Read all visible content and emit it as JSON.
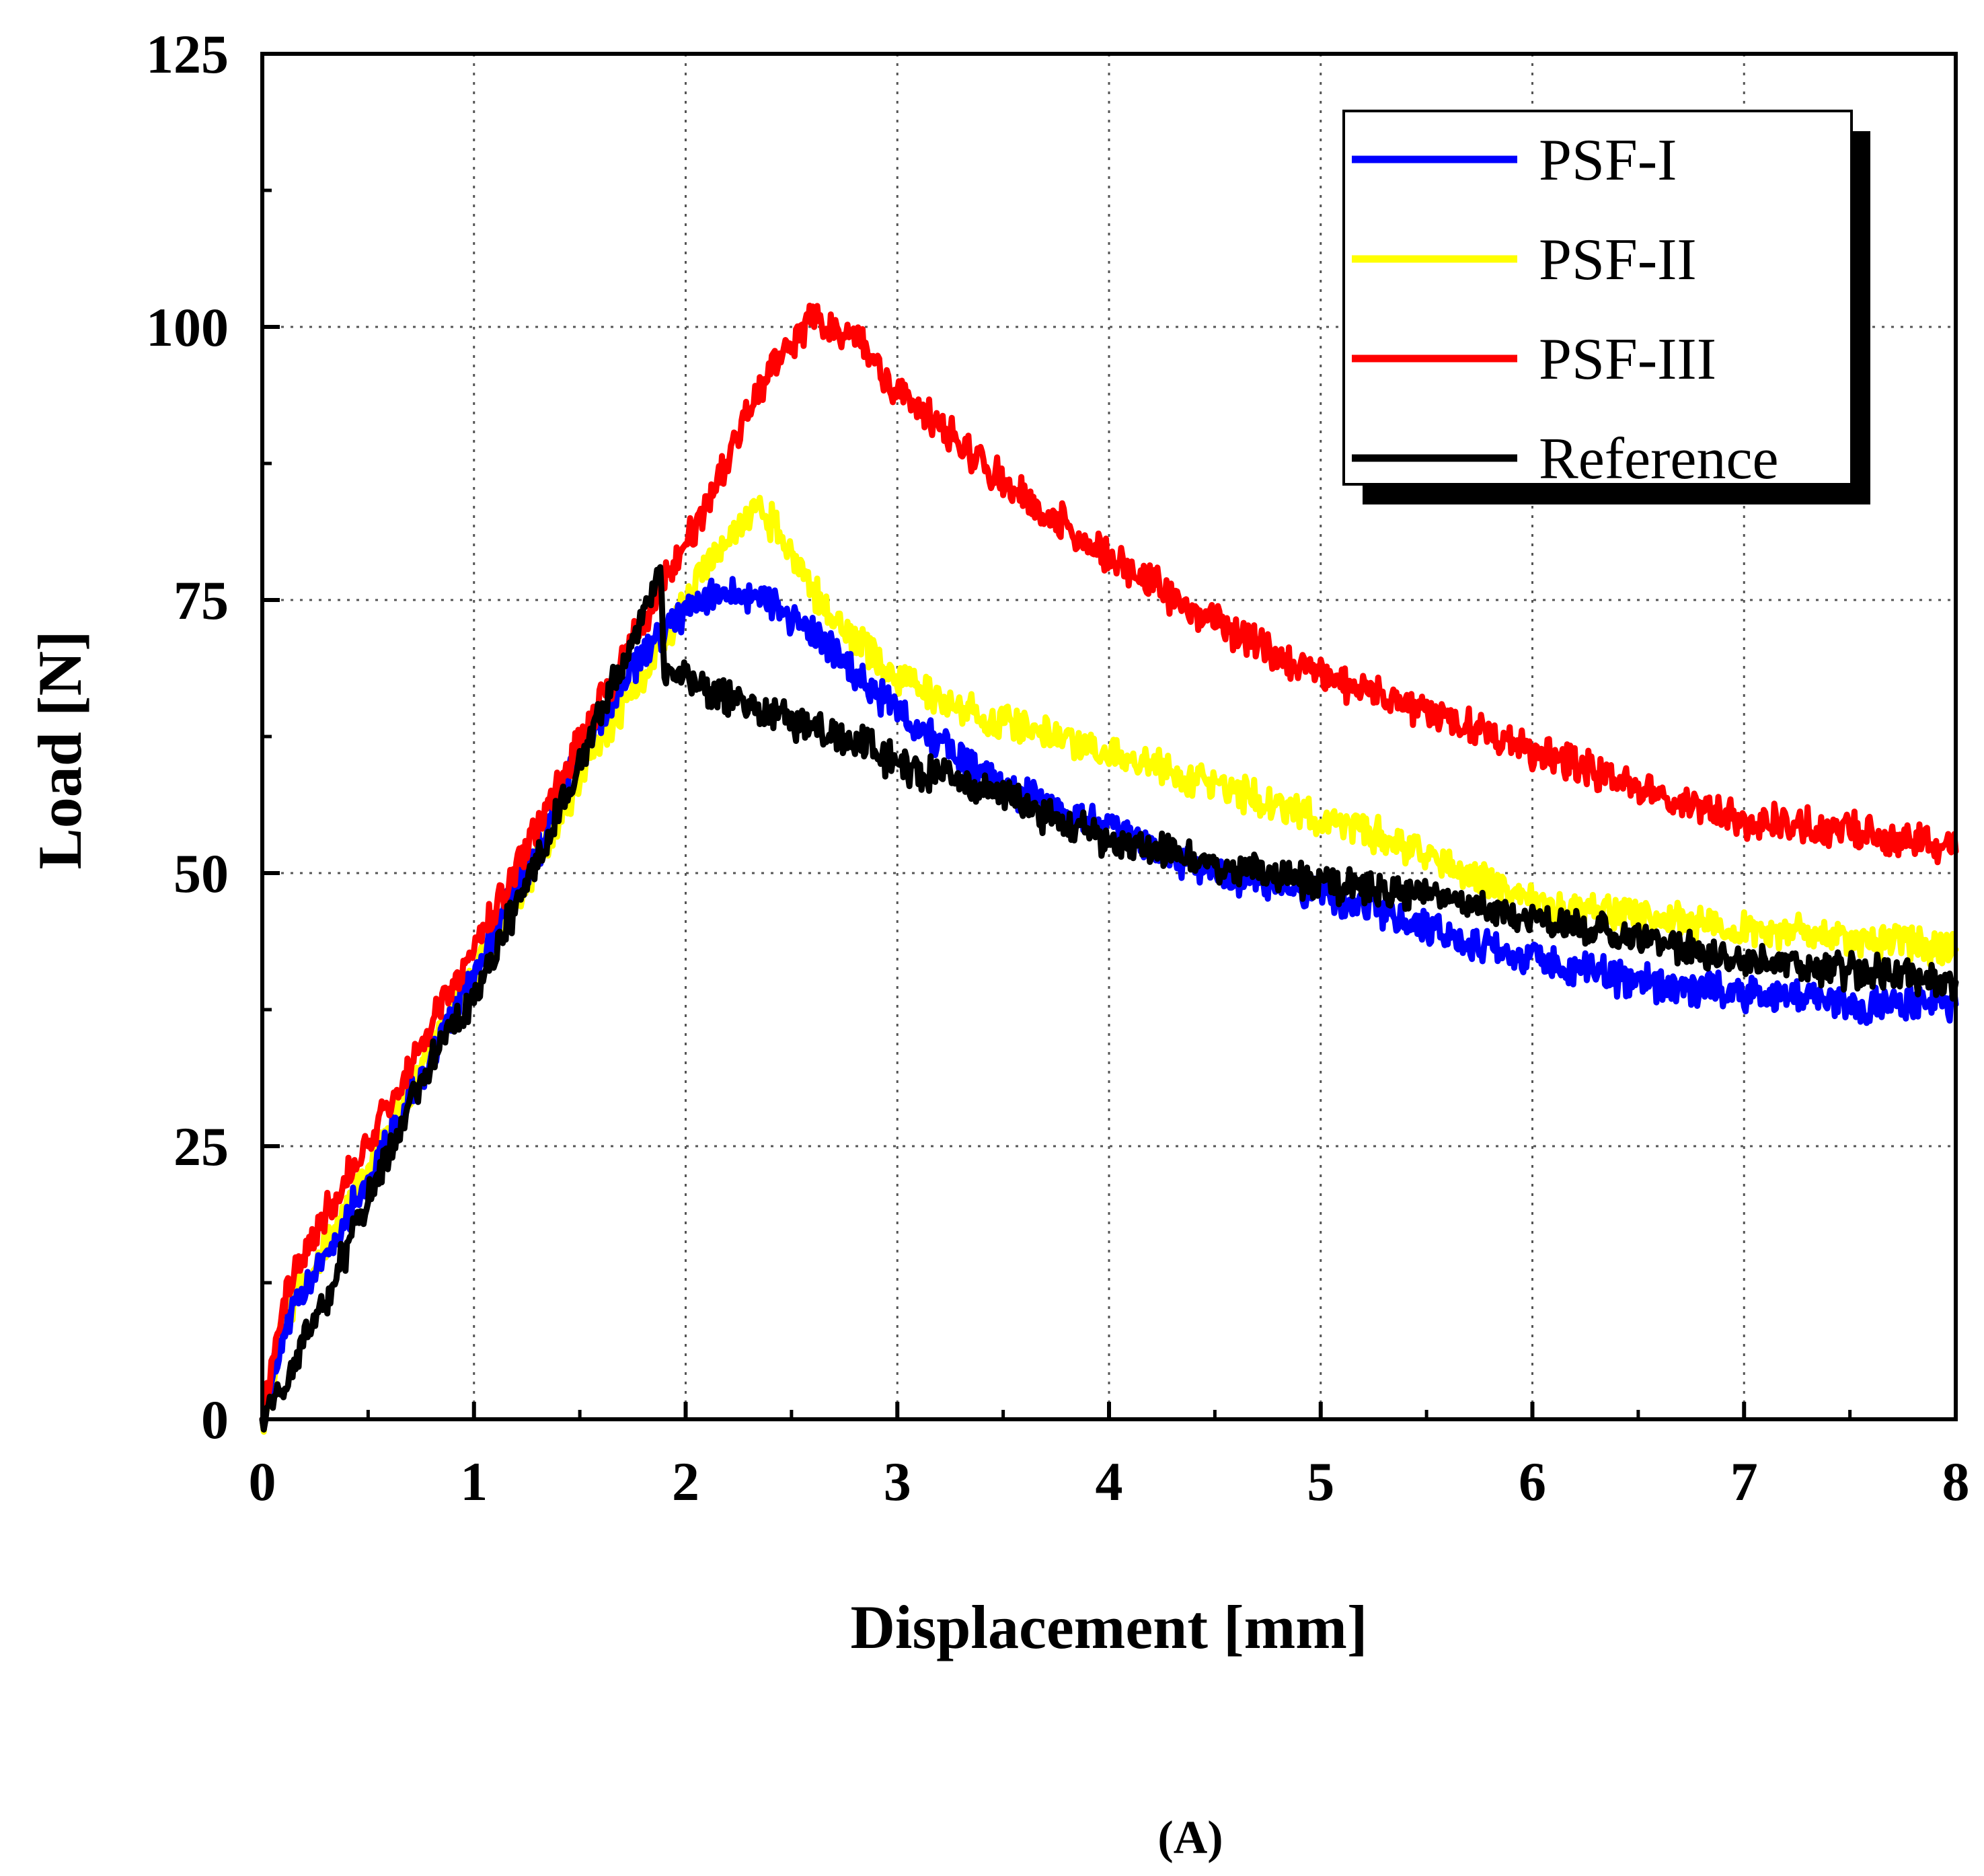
{
  "chart_data": {
    "type": "line",
    "title": "",
    "caption": "(A)",
    "xlabel": "Displacement [mm]",
    "ylabel": "Load [N]",
    "xlim": [
      0,
      8
    ],
    "ylim": [
      0,
      125
    ],
    "xticks": [
      0,
      1,
      2,
      3,
      4,
      5,
      6,
      7,
      8
    ],
    "yticks": [
      0,
      25,
      50,
      75,
      100,
      125
    ],
    "xtick_labels": [
      "0",
      "1",
      "2",
      "3",
      "4",
      "5",
      "6",
      "7",
      "8"
    ],
    "ytick_labels": [
      "0",
      "25",
      "50",
      "75",
      "100",
      "125"
    ],
    "grid": true,
    "legend_position": "top-right",
    "series": [
      {
        "name": "PSF-I",
        "color": "#0000ff",
        "x": [
          0,
          0.1,
          0.3,
          0.5,
          0.8,
          1.0,
          1.3,
          1.5,
          1.8,
          2.0,
          2.2,
          2.4,
          2.6,
          2.8,
          3.0,
          3.2,
          3.5,
          4.0,
          4.5,
          5.0,
          5.5,
          6.0,
          6.5,
          7.0,
          7.5,
          8.0
        ],
        "y": [
          0,
          8,
          15,
          22,
          33,
          41,
          52,
          61,
          70,
          74,
          76,
          75,
          72,
          68,
          65,
          62,
          58,
          54,
          50,
          48,
          45,
          42,
          40,
          39,
          38,
          38
        ]
      },
      {
        "name": "PSF-II",
        "color": "#ffff00",
        "x": [
          0,
          0.1,
          0.3,
          0.5,
          0.8,
          1.0,
          1.3,
          1.5,
          1.8,
          2.0,
          2.2,
          2.35,
          2.5,
          2.7,
          3.0,
          3.3,
          3.5,
          4.0,
          4.5,
          5.0,
          5.5,
          6.0,
          6.5,
          7.0,
          7.5,
          8.0
        ],
        "y": [
          0,
          9,
          16,
          23,
          34,
          41,
          51,
          59,
          68,
          75,
          81,
          84,
          79,
          73,
          68,
          65,
          64,
          61,
          58,
          55,
          52,
          47,
          46,
          45,
          44,
          43
        ]
      },
      {
        "name": "PSF-III",
        "color": "#ff0000",
        "x": [
          0,
          0.1,
          0.3,
          0.5,
          0.8,
          1.0,
          1.3,
          1.5,
          1.8,
          2.0,
          2.2,
          2.4,
          2.6,
          2.8,
          3.0,
          3.5,
          4.0,
          4.5,
          5.0,
          5.5,
          6.0,
          6.5,
          7.0,
          7.5,
          8.0
        ],
        "y": [
          0,
          11,
          19,
          25,
          36,
          43,
          54,
          62,
          73,
          80,
          88,
          96,
          101,
          99,
          94,
          86,
          79,
          73,
          68,
          65,
          61,
          58,
          55,
          54,
          52
        ]
      },
      {
        "name": "Reference",
        "color": "#000000",
        "x": [
          0,
          0.1,
          0.3,
          0.5,
          0.8,
          1.0,
          1.2,
          1.5,
          1.7,
          1.85,
          1.88,
          1.9,
          2.0,
          2.2,
          2.5,
          2.8,
          3.0,
          3.5,
          4.0,
          4.5,
          5.0,
          5.5,
          6.0,
          6.5,
          7.0,
          7.5,
          8.0
        ],
        "y": [
          0,
          3,
          11,
          20,
          33,
          39,
          47,
          60,
          69,
          76,
          79,
          69,
          68,
          66,
          64,
          62,
          60,
          57,
          53,
          51,
          49,
          48,
          46,
          44,
          42,
          41,
          40
        ]
      }
    ]
  }
}
